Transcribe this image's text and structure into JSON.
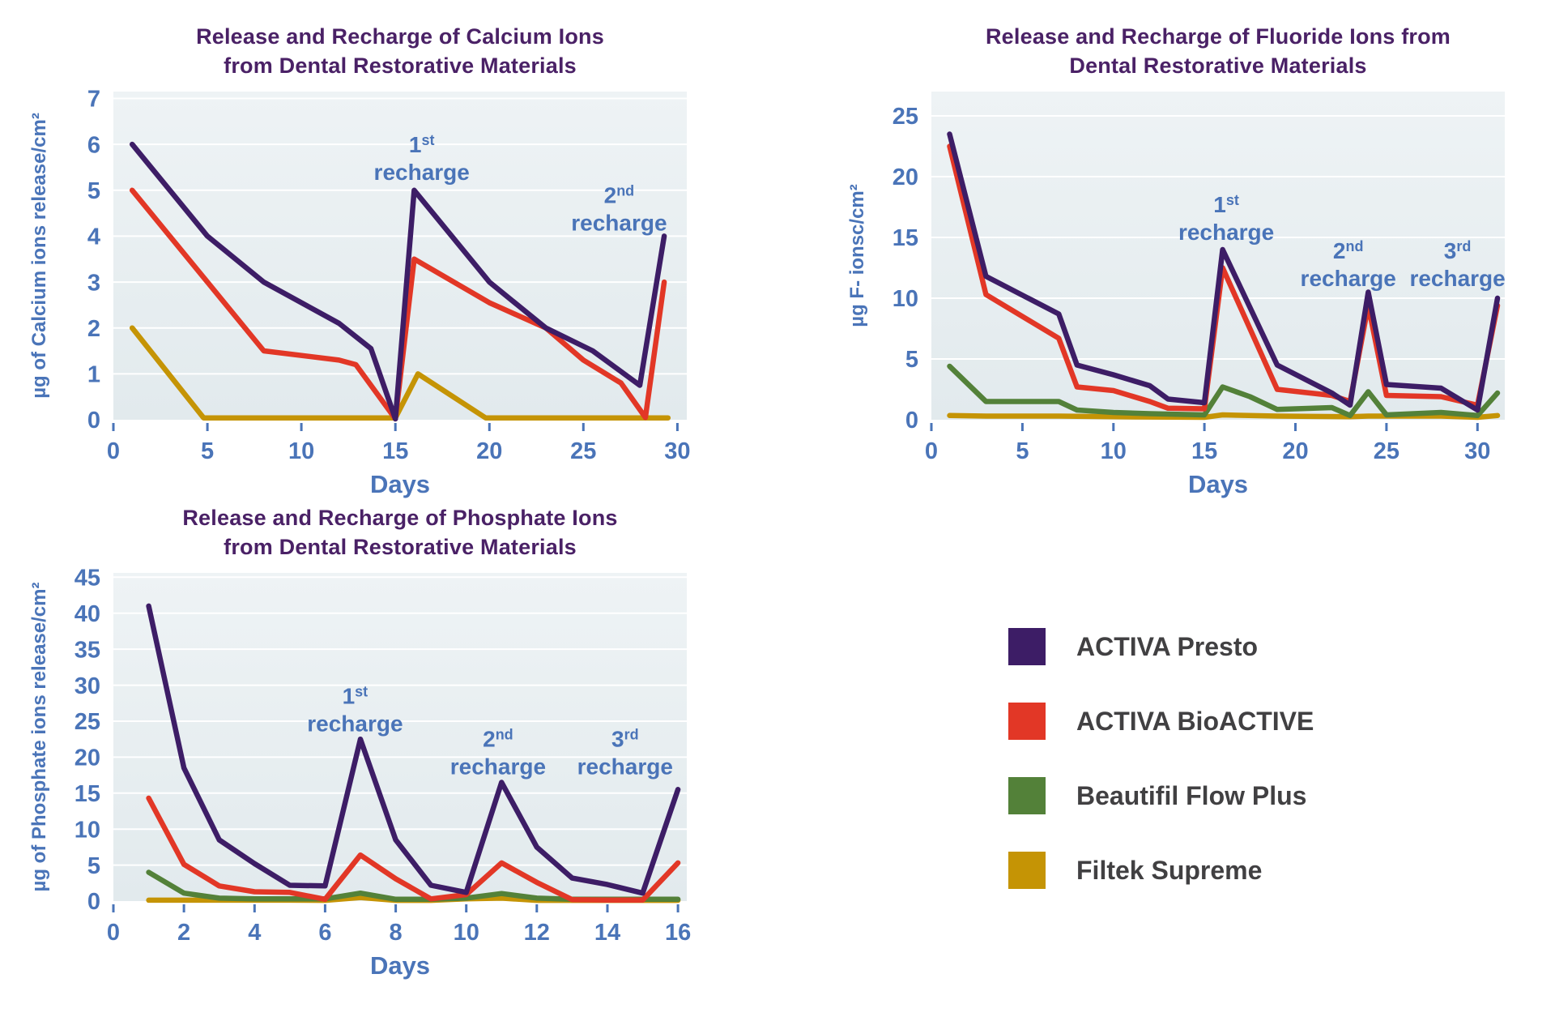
{
  "colors": {
    "title": "#4a2166",
    "axis": "#4a74b8",
    "legend_text": "#414042",
    "plot_bg_top": "#eef3f5",
    "plot_bg_bottom": "#e2eaed",
    "grid": "#ffffff"
  },
  "legend": {
    "items": [
      {
        "label": "ACTIVA Presto",
        "color": "#3d1d66"
      },
      {
        "label": "ACTIVA BioACTIVE",
        "color": "#e23726"
      },
      {
        "label": "Beautifil Flow Plus",
        "color": "#538139"
      },
      {
        "label": "Filtek Supreme",
        "color": "#c59405"
      }
    ]
  },
  "chart_data": [
    {
      "id": "calcium",
      "type": "line",
      "title_lines": [
        "Release and Recharge of Calcium Ions",
        "from Dental Restorative Materials"
      ],
      "ylabel": "µg of Calcium ions release/cm²",
      "xlabel": "Days",
      "x_range": [
        0,
        30.5
      ],
      "y_range": [
        0,
        7.15
      ],
      "x_ticks": [
        0,
        5,
        10,
        15,
        20,
        25,
        30
      ],
      "y_ticks": [
        0,
        1,
        2,
        3,
        4,
        5,
        6,
        7
      ],
      "grid": true,
      "series": [
        {
          "name": "ACTIVA Presto",
          "color": "#3d1d66",
          "points": [
            [
              1,
              6
            ],
            [
              5,
              4
            ],
            [
              8,
              3
            ],
            [
              12,
              2.1
            ],
            [
              13.7,
              1.55
            ],
            [
              15,
              0.02
            ],
            [
              16,
              5
            ],
            [
              20,
              3
            ],
            [
              23,
              2
            ],
            [
              25.5,
              1.5
            ],
            [
              28,
              0.75
            ],
            [
              29.3,
              4
            ]
          ]
        },
        {
          "name": "ACTIVA BioACTIVE",
          "color": "#e23726",
          "points": [
            [
              1,
              5
            ],
            [
              8,
              1.5
            ],
            [
              12,
              1.3
            ],
            [
              12.9,
              1.2
            ],
            [
              15,
              0.02
            ],
            [
              16,
              3.5
            ],
            [
              20,
              2.55
            ],
            [
              23,
              2
            ],
            [
              25,
              1.3
            ],
            [
              27,
              0.8
            ],
            [
              28.3,
              0.05
            ],
            [
              29.3,
              3
            ]
          ]
        },
        {
          "name": "Filtek Supreme",
          "color": "#c59405",
          "points": [
            [
              1,
              2
            ],
            [
              4.8,
              0.04
            ],
            [
              15,
              0.04
            ],
            [
              16.2,
              1
            ],
            [
              19.8,
              0.04
            ],
            [
              29.5,
              0.04
            ]
          ]
        }
      ],
      "annotations": [
        {
          "ordinal": "1",
          "suffix": "st",
          "word": "recharge",
          "x": 16.4,
          "y": 5.65
        },
        {
          "ordinal": "2",
          "suffix": "nd",
          "word": "recharge",
          "x": 26.9,
          "y": 4.55
        }
      ]
    },
    {
      "id": "fluoride",
      "type": "line",
      "title_lines": [
        "Release and Recharge of Fluoride Ions from",
        "Dental Restorative Materials"
      ],
      "ylabel": "µg  F- ionsc/cm²",
      "xlabel": "Days",
      "x_range": [
        0,
        31.5
      ],
      "y_range": [
        0,
        27
      ],
      "x_ticks": [
        0,
        5,
        10,
        15,
        20,
        25,
        30
      ],
      "y_ticks": [
        0,
        5,
        10,
        15,
        20,
        25
      ],
      "grid": true,
      "series": [
        {
          "name": "ACTIVA Presto",
          "color": "#3d1d66",
          "points": [
            [
              1,
              23.5
            ],
            [
              3,
              11.8
            ],
            [
              7,
              8.7
            ],
            [
              8,
              4.5
            ],
            [
              10,
              3.7
            ],
            [
              12,
              2.8
            ],
            [
              13,
              1.7
            ],
            [
              15,
              1.4
            ],
            [
              16,
              14
            ],
            [
              19,
              4.5
            ],
            [
              22,
              2.2
            ],
            [
              23,
              1.2
            ],
            [
              24,
              10.5
            ],
            [
              25,
              2.9
            ],
            [
              28,
              2.6
            ],
            [
              30,
              0.8
            ],
            [
              31.1,
              10
            ]
          ]
        },
        {
          "name": "ACTIVA BioACTIVE",
          "color": "#e23726",
          "points": [
            [
              1,
              22.5
            ],
            [
              3,
              10.3
            ],
            [
              7,
              6.7
            ],
            [
              8,
              2.7
            ],
            [
              10,
              2.4
            ],
            [
              12,
              1.5
            ],
            [
              13,
              0.95
            ],
            [
              15,
              0.9
            ],
            [
              16,
              12.5
            ],
            [
              19,
              2.5
            ],
            [
              22,
              2
            ],
            [
              23,
              1.5
            ],
            [
              24,
              9.4
            ],
            [
              25,
              2
            ],
            [
              28,
              1.9
            ],
            [
              30,
              1.2
            ],
            [
              31.1,
              9.4
            ]
          ]
        },
        {
          "name": "Beautifil Flow Plus",
          "color": "#538139",
          "points": [
            [
              1,
              4.4
            ],
            [
              3,
              1.5
            ],
            [
              7,
              1.5
            ],
            [
              8,
              0.8
            ],
            [
              10,
              0.6
            ],
            [
              12,
              0.5
            ],
            [
              15,
              0.4
            ],
            [
              16,
              2.7
            ],
            [
              17.5,
              1.9
            ],
            [
              19,
              0.85
            ],
            [
              22,
              1
            ],
            [
              23,
              0.35
            ],
            [
              24,
              2.3
            ],
            [
              25,
              0.4
            ],
            [
              28,
              0.6
            ],
            [
              30,
              0.35
            ],
            [
              31.1,
              2.2
            ]
          ]
        },
        {
          "name": "Filtek Supreme",
          "color": "#c59405",
          "points": [
            [
              1,
              0.35
            ],
            [
              3,
              0.3
            ],
            [
              7,
              0.3
            ],
            [
              10,
              0.25
            ],
            [
              15,
              0.2
            ],
            [
              16,
              0.4
            ],
            [
              19,
              0.3
            ],
            [
              23,
              0.25
            ],
            [
              24,
              0.3
            ],
            [
              28,
              0.3
            ],
            [
              30,
              0.2
            ],
            [
              31.1,
              0.35
            ]
          ]
        }
      ],
      "annotations": [
        {
          "ordinal": "1",
          "suffix": "st",
          "word": "recharge",
          "x": 16.2,
          "y": 16.4
        },
        {
          "ordinal": "2",
          "suffix": "nd",
          "word": "recharge",
          "x": 22.9,
          "y": 12.6
        },
        {
          "ordinal": "3",
          "suffix": "rd",
          "word": "recharge",
          "x": 28.9,
          "y": 12.6
        }
      ]
    },
    {
      "id": "phosphate",
      "type": "line",
      "title_lines": [
        "Release and Recharge of Phosphate Ions",
        "from Dental Restorative Materials"
      ],
      "ylabel": "µg of Phosphate ions release/cm²",
      "xlabel": "Days",
      "x_range": [
        0,
        16.25
      ],
      "y_range": [
        0,
        45.6
      ],
      "x_ticks": [
        0,
        2,
        4,
        6,
        8,
        10,
        12,
        14,
        16
      ],
      "y_ticks": [
        0,
        5,
        10,
        15,
        20,
        25,
        30,
        35,
        40,
        45
      ],
      "grid": true,
      "series": [
        {
          "name": "ACTIVA Presto",
          "color": "#3d1d66",
          "points": [
            [
              1,
              41
            ],
            [
              2,
              18.5
            ],
            [
              3,
              8.5
            ],
            [
              4,
              5.2
            ],
            [
              5,
              2.2
            ],
            [
              6,
              2.1
            ],
            [
              7,
              22.5
            ],
            [
              8,
              8.5
            ],
            [
              9,
              2.2
            ],
            [
              10,
              1.2
            ],
            [
              11,
              16.5
            ],
            [
              12,
              7.5
            ],
            [
              13,
              3.2
            ],
            [
              14,
              2.3
            ],
            [
              15,
              1.1
            ],
            [
              16,
              15.5
            ]
          ]
        },
        {
          "name": "ACTIVA BioACTIVE",
          "color": "#e23726",
          "points": [
            [
              1,
              14.3
            ],
            [
              2,
              5.1
            ],
            [
              3,
              2.1
            ],
            [
              4,
              1.3
            ],
            [
              5,
              1.2
            ],
            [
              6,
              0.25
            ],
            [
              7,
              6.4
            ],
            [
              8,
              3.1
            ],
            [
              9,
              0.3
            ],
            [
              10,
              0.9
            ],
            [
              11,
              5.3
            ],
            [
              12,
              2.6
            ],
            [
              13,
              0.2
            ],
            [
              14,
              0.15
            ],
            [
              15,
              0.15
            ],
            [
              16,
              5.3
            ]
          ]
        },
        {
          "name": "Beautifil Flow Plus",
          "color": "#538139",
          "points": [
            [
              1,
              4
            ],
            [
              2,
              1.1
            ],
            [
              3,
              0.4
            ],
            [
              4,
              0.3
            ],
            [
              5,
              0.3
            ],
            [
              6,
              0.3
            ],
            [
              7,
              1.1
            ],
            [
              8,
              0.25
            ],
            [
              9,
              0.25
            ],
            [
              10,
              0.4
            ],
            [
              11,
              1.05
            ],
            [
              12,
              0.4
            ],
            [
              13,
              0.25
            ],
            [
              14,
              0.25
            ],
            [
              15,
              0.25
            ],
            [
              16,
              0.25
            ]
          ]
        },
        {
          "name": "Filtek Supreme",
          "color": "#c59405",
          "points": [
            [
              1,
              0.12
            ],
            [
              5,
              0.12
            ],
            [
              6,
              0.1
            ],
            [
              7,
              0.5
            ],
            [
              8,
              0.1
            ],
            [
              9,
              0.1
            ],
            [
              10,
              0.3
            ],
            [
              11,
              0.4
            ],
            [
              12,
              0.1
            ],
            [
              16,
              0.1
            ]
          ]
        }
      ],
      "annotations": [
        {
          "ordinal": "1",
          "suffix": "st",
          "word": "recharge",
          "x": 6.85,
          "y": 26.3
        },
        {
          "ordinal": "2",
          "suffix": "nd",
          "word": "recharge",
          "x": 10.9,
          "y": 20.3
        },
        {
          "ordinal": "3",
          "suffix": "rd",
          "word": "recharge",
          "x": 14.5,
          "y": 20.3
        }
      ]
    }
  ]
}
